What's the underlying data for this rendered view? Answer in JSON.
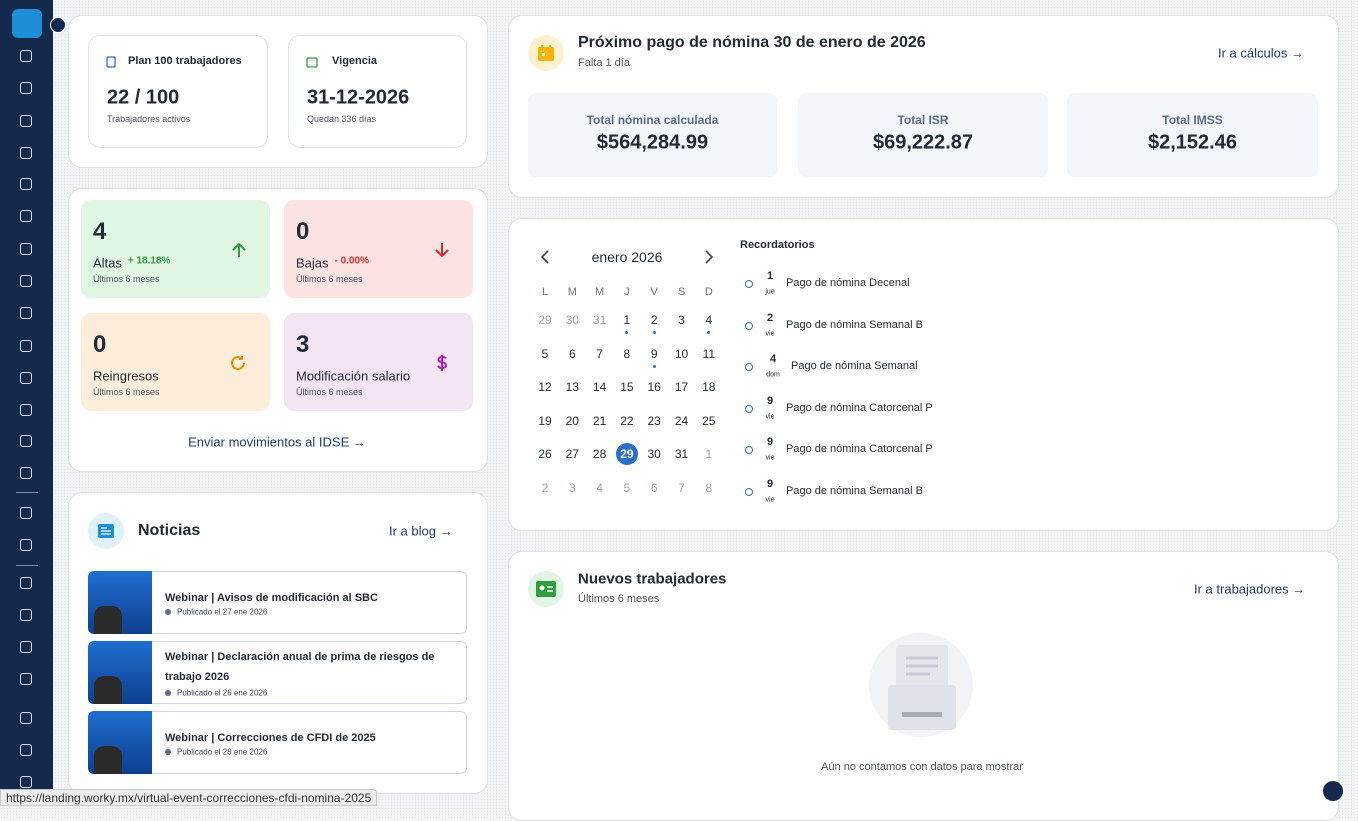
{
  "plan": {
    "title": "Plan 100 trabajadores",
    "value": "22 / 100",
    "caption": "Trabajadores activos"
  },
  "vigencia": {
    "title": "Vigencia",
    "value": "31-12-2026",
    "caption": "Quedan 336 días"
  },
  "movements": [
    {
      "count": "4",
      "label": "Altas",
      "change": "+ 18.18%",
      "caption": "Últimos 6 meses"
    },
    {
      "count": "0",
      "label": "Bajas",
      "change": "- 0.00%",
      "caption": "Últimos 6 meses"
    },
    {
      "count": "0",
      "label": "Reingresos",
      "caption": "Últimos 6 meses"
    },
    {
      "count": "3",
      "label": "Modificación salario",
      "caption": "Últimos 6 meses"
    }
  ],
  "movements_link": "Enviar movimientos al IDSE →",
  "news": {
    "title": "Noticias",
    "link": "Ir a blog →",
    "items": [
      {
        "title": "Webinar | Avisos de modificación al SBC",
        "date": "Publicado el 27 ene 2026"
      },
      {
        "title": "Webinar | Declaración anual de prima de riesgos de trabajo 2026",
        "date": "Publicado el 26 ene 2026"
      },
      {
        "title": "Webinar | Correcciones de CFDI de 2025",
        "date": "Publicado el 28 ene 2026"
      }
    ]
  },
  "payroll": {
    "title": "Próximo pago de nómina 30 de enero de 2026",
    "subtitle": "Falta 1 día",
    "link": "Ir a cálculos →",
    "totals": [
      {
        "label": "Total nómina calculada",
        "value": "$564,284.99"
      },
      {
        "label": "Total ISR",
        "value": "$69,222.87"
      },
      {
        "label": "Total IMSS",
        "value": "$2,152.46"
      }
    ]
  },
  "calendar": {
    "month": "enero 2026",
    "weekdays": [
      "L",
      "M",
      "M",
      "J",
      "V",
      "S",
      "D"
    ],
    "days": [
      29,
      30,
      31,
      1,
      2,
      3,
      4,
      5,
      6,
      7,
      8,
      9,
      10,
      11,
      12,
      13,
      14,
      15,
      16,
      17,
      18,
      19,
      20,
      21,
      22,
      23,
      24,
      25,
      26,
      27,
      28,
      29,
      30,
      31,
      1,
      2,
      3,
      4,
      5,
      6,
      7,
      8
    ],
    "event_days": [
      1,
      2,
      4,
      9
    ],
    "selected_day": 29
  },
  "reminders": {
    "title": "Recordatorios",
    "items": [
      {
        "day": "1",
        "weekday": "jue",
        "name": "Pago de nómina Decenal"
      },
      {
        "day": "2",
        "weekday": "vie",
        "name": "Pago de nómina Semanal B"
      },
      {
        "day": "4",
        "weekday": "dom",
        "name": "Pago de nómina Semanal"
      },
      {
        "day": "9",
        "weekday": "vie",
        "name": "Pago de nómina Catorcenal P"
      },
      {
        "day": "9",
        "weekday": "vie",
        "name": "Pago de nómina Catorcenal P"
      },
      {
        "day": "9",
        "weekday": "vie",
        "name": "Pago de nómina Semanal B"
      }
    ]
  },
  "new_workers": {
    "title": "Nuevos trabajadores",
    "subtitle": "Últimos 6 meses",
    "link": "Ir a trabajadores →",
    "empty": "Aún no contamos con datos para mostrar"
  },
  "status_url": "https://landing.worky.mx/virtual-event-correcciones-cfdi-nomina-2025"
}
